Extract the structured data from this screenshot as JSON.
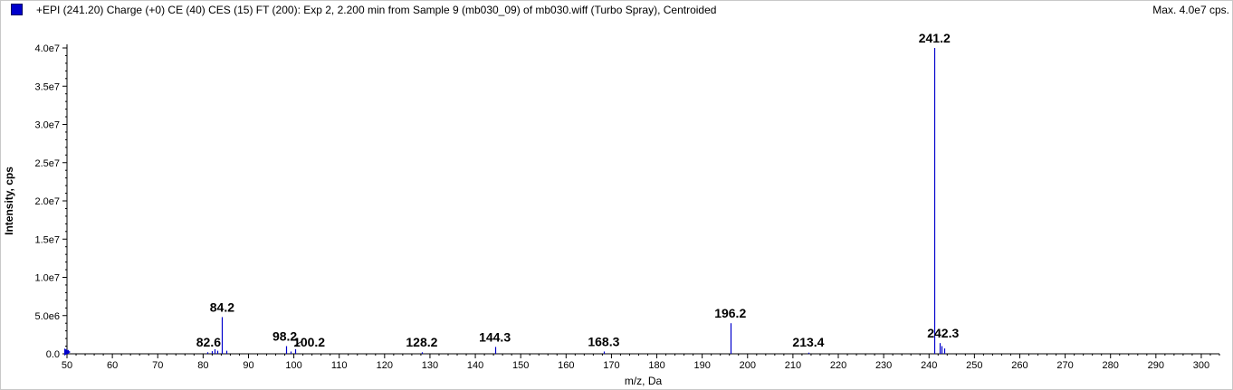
{
  "header": {
    "title": "+EPI (241.20) Charge (+0) CE (40) CES (15) FT (200): Exp 2, 2.200 min from Sample 9 (mb030_09) of mb030.wiff (Turbo Spray), Centroided",
    "max_label": "Max. 4.0e7 cps.",
    "series_color": "#0000cc"
  },
  "chart_data": {
    "type": "bar",
    "xlabel": "m/z, Da",
    "ylabel": "Intensity, cps",
    "xlim": [
      50,
      304
    ],
    "ylim": [
      0,
      40000000
    ],
    "x_ticks": [
      50,
      60,
      70,
      80,
      90,
      100,
      110,
      120,
      130,
      140,
      150,
      160,
      170,
      180,
      190,
      200,
      210,
      220,
      230,
      240,
      250,
      260,
      270,
      280,
      290,
      300
    ],
    "y_ticks": [
      {
        "value": 0,
        "label": "0.0"
      },
      {
        "value": 5000000,
        "label": "5.0e6"
      },
      {
        "value": 10000000,
        "label": "1.0e7"
      },
      {
        "value": 15000000,
        "label": "1.5e7"
      },
      {
        "value": 20000000,
        "label": "2.0e7"
      },
      {
        "value": 25000000,
        "label": "2.5e7"
      },
      {
        "value": 30000000,
        "label": "3.0e7"
      },
      {
        "value": 35000000,
        "label": "3.5e7"
      },
      {
        "value": 40000000,
        "label": "4.0e7"
      }
    ],
    "peaks": [
      {
        "mz": 50.2,
        "intensity": 500000
      },
      {
        "mz": 81.0,
        "intensity": 200000
      },
      {
        "mz": 82.0,
        "intensity": 350000
      },
      {
        "mz": 82.6,
        "intensity": 600000
      },
      {
        "mz": 83.2,
        "intensity": 400000
      },
      {
        "mz": 84.2,
        "intensity": 4800000
      },
      {
        "mz": 85.2,
        "intensity": 400000
      },
      {
        "mz": 98.2,
        "intensity": 1000000
      },
      {
        "mz": 99.2,
        "intensity": 300000
      },
      {
        "mz": 100.2,
        "intensity": 600000
      },
      {
        "mz": 128.2,
        "intensity": 200000
      },
      {
        "mz": 144.3,
        "intensity": 900000
      },
      {
        "mz": 168.3,
        "intensity": 300000
      },
      {
        "mz": 196.2,
        "intensity": 4000000
      },
      {
        "mz": 213.4,
        "intensity": 150000
      },
      {
        "mz": 241.2,
        "intensity": 40000000
      },
      {
        "mz": 242.3,
        "intensity": 1400000
      },
      {
        "mz": 242.8,
        "intensity": 1000000
      },
      {
        "mz": 243.3,
        "intensity": 700000
      }
    ],
    "peak_labels": [
      {
        "mz": 82.6,
        "text": "82.6"
      },
      {
        "mz": 84.2,
        "text": "84.2"
      },
      {
        "mz": 98.2,
        "text": "98.2"
      },
      {
        "mz": 100.2,
        "text": "100.2"
      },
      {
        "mz": 128.2,
        "text": "128.2"
      },
      {
        "mz": 144.3,
        "text": "144.3"
      },
      {
        "mz": 168.3,
        "text": "168.3"
      },
      {
        "mz": 196.2,
        "text": "196.2"
      },
      {
        "mz": 213.4,
        "text": "213.4"
      },
      {
        "mz": 241.2,
        "text": "241.2"
      },
      {
        "mz": 242.3,
        "text": "242.3"
      }
    ]
  }
}
